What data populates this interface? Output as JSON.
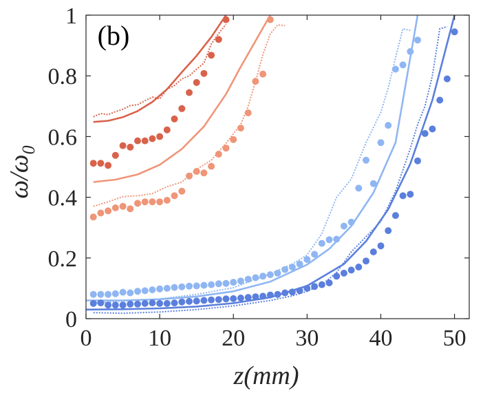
{
  "chart_data": {
    "type": "scatter",
    "title": "",
    "panel_label": "(b)",
    "xlabel": "z(mm)",
    "ylabel": {
      "base": "ω/ω",
      "subscript": "0"
    },
    "xlim": [
      0,
      52
    ],
    "ylim": [
      0,
      1
    ],
    "xticks": [
      0,
      10,
      20,
      30,
      40,
      50
    ],
    "yticks": [
      0,
      0.2,
      0.4,
      0.6,
      0.8,
      1
    ],
    "ytick_labels": [
      "0",
      "0.2",
      "0.4",
      "0.6",
      "0.8",
      "1"
    ],
    "grid": false,
    "series": [
      {
        "name": "red",
        "color": "#d9624b",
        "points": {
          "x": [
            1,
            2,
            3,
            4,
            5,
            6,
            7,
            8,
            9,
            10,
            11,
            12,
            13,
            14,
            15,
            16,
            17,
            18,
            19
          ],
          "y": [
            0.512,
            0.512,
            0.505,
            0.538,
            0.57,
            0.565,
            0.586,
            0.586,
            0.593,
            0.6,
            0.622,
            0.658,
            0.692,
            0.745,
            0.778,
            0.808,
            0.868,
            0.92,
            0.985
          ]
        },
        "model": {
          "x": [
            1,
            3,
            5,
            7,
            9,
            11,
            13,
            15,
            17,
            19
          ],
          "y": [
            0.648,
            0.652,
            0.664,
            0.684,
            0.714,
            0.756,
            0.812,
            0.866,
            0.928,
            1.0
          ]
        },
        "measured": {
          "x": [
            1,
            2,
            3,
            4,
            5,
            6,
            7,
            8,
            9,
            10,
            11,
            12,
            13,
            14,
            15,
            16,
            17,
            18,
            19
          ],
          "y": [
            0.665,
            0.676,
            0.672,
            0.682,
            0.69,
            0.702,
            0.705,
            0.718,
            0.73,
            0.724,
            0.756,
            0.768,
            0.79,
            0.8,
            0.822,
            0.842,
            0.905,
            0.94,
            0.97
          ]
        }
      },
      {
        "name": "salmon",
        "color": "#ef9578",
        "points": {
          "x": [
            1,
            2,
            3,
            4,
            5,
            6,
            7,
            8,
            9,
            10,
            11,
            12,
            13,
            14,
            15,
            16,
            17,
            18,
            19,
            20,
            21,
            22,
            23,
            24,
            25
          ],
          "y": [
            0.335,
            0.348,
            0.355,
            0.365,
            0.37,
            0.362,
            0.38,
            0.385,
            0.385,
            0.385,
            0.39,
            0.405,
            0.42,
            0.47,
            0.485,
            0.48,
            0.502,
            0.542,
            0.562,
            0.59,
            0.628,
            0.678,
            0.782,
            0.806,
            0.985
          ]
        },
        "model": {
          "x": [
            1,
            4,
            7,
            10,
            13,
            16,
            19,
            21,
            23,
            25
          ],
          "y": [
            0.45,
            0.458,
            0.475,
            0.507,
            0.559,
            0.633,
            0.74,
            0.83,
            0.915,
            1.0
          ]
        },
        "measured": {
          "x": [
            1,
            3,
            5,
            7,
            9,
            11,
            13,
            15,
            17,
            19,
            21,
            22,
            23,
            24,
            25,
            26,
            27
          ],
          "y": [
            0.37,
            0.385,
            0.402,
            0.405,
            0.412,
            0.435,
            0.45,
            0.492,
            0.522,
            0.578,
            0.64,
            0.7,
            0.782,
            0.87,
            0.938,
            0.968,
            0.965
          ]
        }
      },
      {
        "name": "light-blue",
        "color": "#8fb6f2",
        "points": {
          "x": [
            1,
            2,
            3,
            4,
            5,
            6,
            7,
            8,
            9,
            10,
            11,
            12,
            13,
            14,
            15,
            16,
            17,
            18,
            19,
            20,
            21,
            22,
            23,
            24,
            25,
            26,
            27,
            28,
            29,
            30,
            31,
            32,
            33,
            34,
            35,
            36,
            37,
            38,
            39,
            40,
            41,
            42,
            43,
            44,
            45
          ],
          "y": [
            0.08,
            0.08,
            0.08,
            0.082,
            0.087,
            0.085,
            0.09,
            0.092,
            0.095,
            0.098,
            0.1,
            0.103,
            0.105,
            0.107,
            0.108,
            0.11,
            0.112,
            0.115,
            0.116,
            0.12,
            0.124,
            0.13,
            0.135,
            0.14,
            0.145,
            0.15,
            0.162,
            0.17,
            0.18,
            0.195,
            0.212,
            0.248,
            0.26,
            0.262,
            0.305,
            0.318,
            0.43,
            0.522,
            0.445,
            0.58,
            0.637,
            0.822,
            0.836,
            0.88,
            0.918
          ]
        },
        "model": {
          "x": [
            0,
            5,
            10,
            15,
            20,
            25,
            30,
            33,
            36,
            39,
            42,
            45
          ],
          "y": [
            0.06,
            0.06,
            0.064,
            0.073,
            0.09,
            0.122,
            0.178,
            0.23,
            0.305,
            0.415,
            0.58,
            1.0
          ]
        },
        "measured": {
          "x": [
            1,
            5,
            10,
            15,
            20,
            25,
            28,
            30,
            32,
            34,
            36,
            38,
            40,
            41,
            42,
            43,
            44
          ],
          "y": [
            0.052,
            0.058,
            0.065,
            0.08,
            0.102,
            0.148,
            0.18,
            0.21,
            0.28,
            0.4,
            0.46,
            0.58,
            0.68,
            0.76,
            0.86,
            0.955,
            0.95
          ]
        }
      },
      {
        "name": "blue",
        "color": "#5a7fdc",
        "points": {
          "x": [
            1,
            2,
            3,
            4,
            5,
            6,
            7,
            8,
            9,
            10,
            11,
            12,
            13,
            14,
            15,
            16,
            17,
            18,
            19,
            20,
            21,
            22,
            23,
            24,
            25,
            26,
            27,
            28,
            29,
            30,
            31,
            32,
            33,
            34,
            35,
            36,
            37,
            38,
            39,
            40,
            41,
            42,
            43,
            44,
            45,
            46,
            47,
            48,
            49,
            50
          ],
          "y": [
            0.05,
            0.052,
            0.045,
            0.045,
            0.045,
            0.048,
            0.048,
            0.05,
            0.052,
            0.05,
            0.05,
            0.052,
            0.055,
            0.057,
            0.058,
            0.06,
            0.062,
            0.063,
            0.065,
            0.066,
            0.068,
            0.07,
            0.072,
            0.074,
            0.078,
            0.08,
            0.085,
            0.088,
            0.092,
            0.1,
            0.106,
            0.112,
            0.118,
            0.14,
            0.15,
            0.16,
            0.17,
            0.19,
            0.22,
            0.24,
            0.29,
            0.34,
            0.405,
            0.41,
            0.52,
            0.61,
            0.625,
            0.72,
            0.79,
            0.945
          ]
        },
        "model": {
          "x": [
            0,
            5,
            10,
            15,
            20,
            25,
            30,
            35,
            38,
            41,
            44,
            47,
            50
          ],
          "y": [
            0.03,
            0.031,
            0.034,
            0.04,
            0.051,
            0.07,
            0.108,
            0.18,
            0.255,
            0.36,
            0.51,
            0.72,
            1.0
          ]
        },
        "measured": {
          "x": [
            1,
            5,
            10,
            15,
            20,
            25,
            28,
            30,
            32,
            34,
            36,
            38,
            40,
            42,
            44,
            45,
            46,
            47,
            48,
            49
          ],
          "y": [
            0.02,
            0.018,
            0.022,
            0.03,
            0.042,
            0.06,
            0.075,
            0.09,
            0.112,
            0.152,
            0.22,
            0.27,
            0.32,
            0.42,
            0.56,
            0.64,
            0.7,
            0.8,
            0.955,
            0.962
          ]
        }
      }
    ]
  }
}
